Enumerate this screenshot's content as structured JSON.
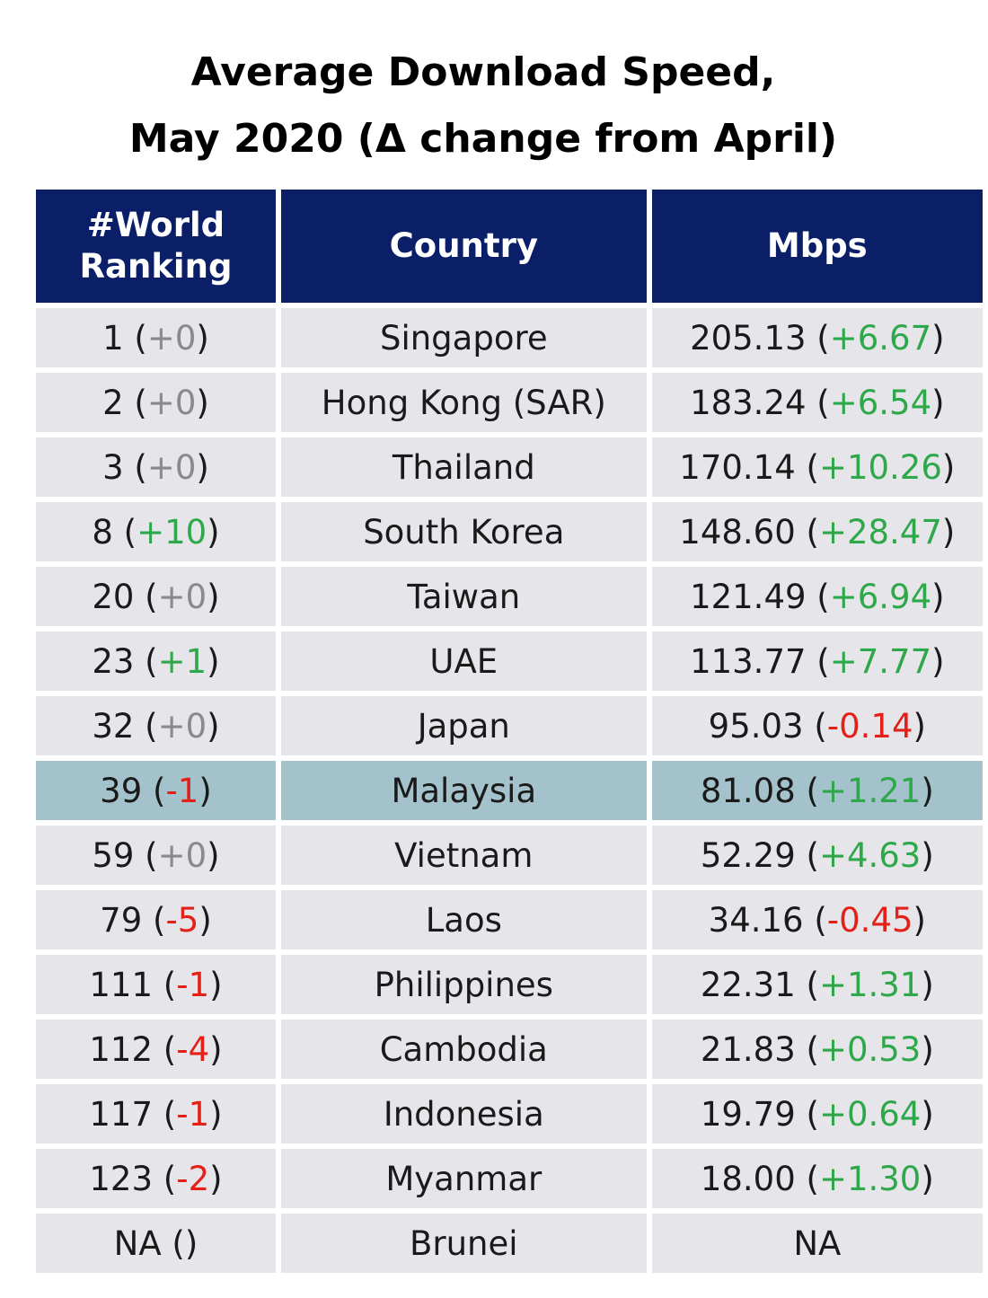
{
  "title": [
    "Average Download Speed,",
    "May 2020 (Δ change from April)"
  ],
  "trend_colors": {
    "up": "#2ea84a",
    "down": "#e32119",
    "neutral": "#8a8a8a"
  },
  "header_color": "#0a1f68",
  "row_color": "#e6e6ea",
  "highlight_color": "#a4c2cc",
  "table": {
    "headers": [
      "#World Ranking",
      "Country",
      "Mbps"
    ],
    "rows": [
      {
        "rank": {
          "parts": [
            "1 (",
            "+0",
            ")"
          ],
          "trend": "neutral"
        },
        "country": "Singapore",
        "speed": {
          "parts": [
            "205.13 (",
            "+6.67",
            ")"
          ],
          "trend": "up"
        },
        "highlight": false
      },
      {
        "rank": {
          "parts": [
            "2 (",
            "+0",
            ")"
          ],
          "trend": "neutral"
        },
        "country": "Hong Kong (SAR)",
        "speed": {
          "parts": [
            "183.24 (",
            "+6.54",
            ")"
          ],
          "trend": "up"
        },
        "highlight": false
      },
      {
        "rank": {
          "parts": [
            "3 (",
            "+0",
            ")"
          ],
          "trend": "neutral"
        },
        "country": "Thailand",
        "speed": {
          "parts": [
            "170.14 (",
            "+10.26",
            ")"
          ],
          "trend": "up"
        },
        "highlight": false
      },
      {
        "rank": {
          "parts": [
            "8 (",
            "+10",
            ")"
          ],
          "trend": "up"
        },
        "country": "South Korea",
        "speed": {
          "parts": [
            "148.60 (",
            "+28.47",
            ")"
          ],
          "trend": "up"
        },
        "highlight": false
      },
      {
        "rank": {
          "parts": [
            "20 (",
            "+0",
            ")"
          ],
          "trend": "neutral"
        },
        "country": "Taiwan",
        "speed": {
          "parts": [
            "121.49 (",
            "+6.94",
            ")"
          ],
          "trend": "up"
        },
        "highlight": false
      },
      {
        "rank": {
          "parts": [
            "23 (",
            "+1",
            ")"
          ],
          "trend": "up"
        },
        "country": "UAE",
        "speed": {
          "parts": [
            "113.77 (",
            "+7.77",
            ")"
          ],
          "trend": "up"
        },
        "highlight": false
      },
      {
        "rank": {
          "parts": [
            "32 (",
            "+0",
            ")"
          ],
          "trend": "neutral"
        },
        "country": "Japan",
        "speed": {
          "parts": [
            "95.03 (",
            "-0.14",
            ")"
          ],
          "trend": "down"
        },
        "highlight": false
      },
      {
        "rank": {
          "parts": [
            "39 (",
            "-1",
            ")"
          ],
          "trend": "down"
        },
        "country": "Malaysia",
        "speed": {
          "parts": [
            "81.08 (",
            "+1.21",
            ")"
          ],
          "trend": "up"
        },
        "highlight": true
      },
      {
        "rank": {
          "parts": [
            "59 (",
            "+0",
            ")"
          ],
          "trend": "neutral"
        },
        "country": "Vietnam",
        "speed": {
          "parts": [
            "52.29 (",
            "+4.63",
            ")"
          ],
          "trend": "up"
        },
        "highlight": false
      },
      {
        "rank": {
          "parts": [
            "79 (",
            "-5",
            ")"
          ],
          "trend": "down"
        },
        "country": "Laos",
        "speed": {
          "parts": [
            "34.16 (",
            "-0.45",
            ")"
          ],
          "trend": "down"
        },
        "highlight": false
      },
      {
        "rank": {
          "parts": [
            "111 (",
            "-1",
            ")"
          ],
          "trend": "down"
        },
        "country": "Philippines",
        "speed": {
          "parts": [
            "22.31 (",
            "+1.31",
            ")"
          ],
          "trend": "up"
        },
        "highlight": false
      },
      {
        "rank": {
          "parts": [
            "112 (",
            "-4",
            ")"
          ],
          "trend": "down"
        },
        "country": "Cambodia",
        "speed": {
          "parts": [
            "21.83 (",
            "+0.53",
            ")"
          ],
          "trend": "up"
        },
        "highlight": false
      },
      {
        "rank": {
          "parts": [
            "117 (",
            "-1",
            ")"
          ],
          "trend": "down"
        },
        "country": "Indonesia",
        "speed": {
          "parts": [
            "19.79 (",
            "+0.64",
            ")"
          ],
          "trend": "up"
        },
        "highlight": false
      },
      {
        "rank": {
          "parts": [
            "123 (",
            "-2",
            ")"
          ],
          "trend": "down"
        },
        "country": "Myanmar",
        "speed": {
          "parts": [
            "18.00 (",
            "+1.30",
            ")"
          ],
          "trend": "up"
        },
        "highlight": false
      },
      {
        "rank": {
          "parts": [
            "NA ()"
          ],
          "trend": "neutral"
        },
        "country": "Brunei",
        "speed": {
          "parts": [
            "NA"
          ],
          "trend": "neutral"
        },
        "highlight": false
      }
    ]
  }
}
